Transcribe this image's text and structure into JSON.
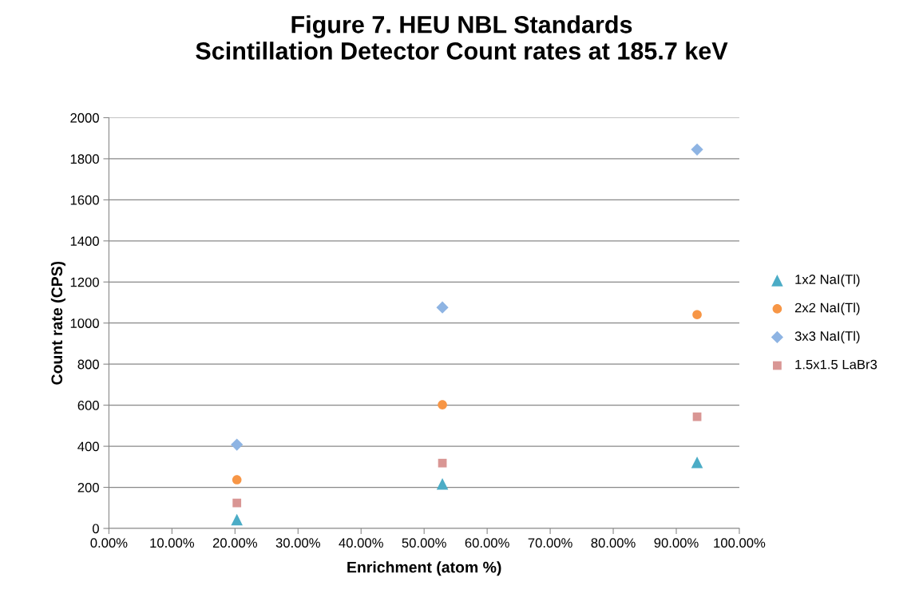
{
  "chart_data": {
    "type": "scatter",
    "title": "Figure 7. HEU NBL Standards\nScintillation Detector Count rates at 185.7 keV",
    "xlabel": "Enrichment (atom %)",
    "ylabel": "Count rate (CPS)",
    "xlim": [
      0,
      1
    ],
    "xticks": [
      {
        "value": 0,
        "label": "0.00%"
      },
      {
        "value": 0.1,
        "label": "10.00%"
      },
      {
        "value": 0.2,
        "label": "20.00%"
      },
      {
        "value": 0.3,
        "label": "30.00%"
      },
      {
        "value": 0.4,
        "label": "40.00%"
      },
      {
        "value": 0.5,
        "label": "50.00%"
      },
      {
        "value": 0.6,
        "label": "60.00%"
      },
      {
        "value": 0.7,
        "label": "70.00%"
      },
      {
        "value": 0.8,
        "label": "80.00%"
      },
      {
        "value": 0.9,
        "label": "90.00%"
      },
      {
        "value": 1,
        "label": "100.00%"
      }
    ],
    "ylim": [
      0,
      2000
    ],
    "yticks": [
      0,
      200,
      400,
      600,
      800,
      1000,
      1200,
      1400,
      1600,
      1800,
      2000
    ],
    "grid": "y",
    "legend": "right",
    "x": [
      0.203,
      0.529,
      0.933
    ],
    "series": [
      {
        "name": "1x2 NaI(Tl)",
        "color": "#4bacc6",
        "marker": "triangle",
        "values": [
          43,
          217,
          322
        ]
      },
      {
        "name": "2x2 NaI(Tl)",
        "color": "#f79646",
        "marker": "circle",
        "values": [
          237,
          602,
          1041
        ]
      },
      {
        "name": "3x3 NaI(Tl)",
        "color": "#8eb4e3",
        "marker": "diamond",
        "values": [
          408,
          1076,
          1845
        ]
      },
      {
        "name": "1.5x1.5 LaBr3",
        "color": "#d99694",
        "marker": "square",
        "values": [
          124,
          318,
          544
        ]
      }
    ]
  }
}
